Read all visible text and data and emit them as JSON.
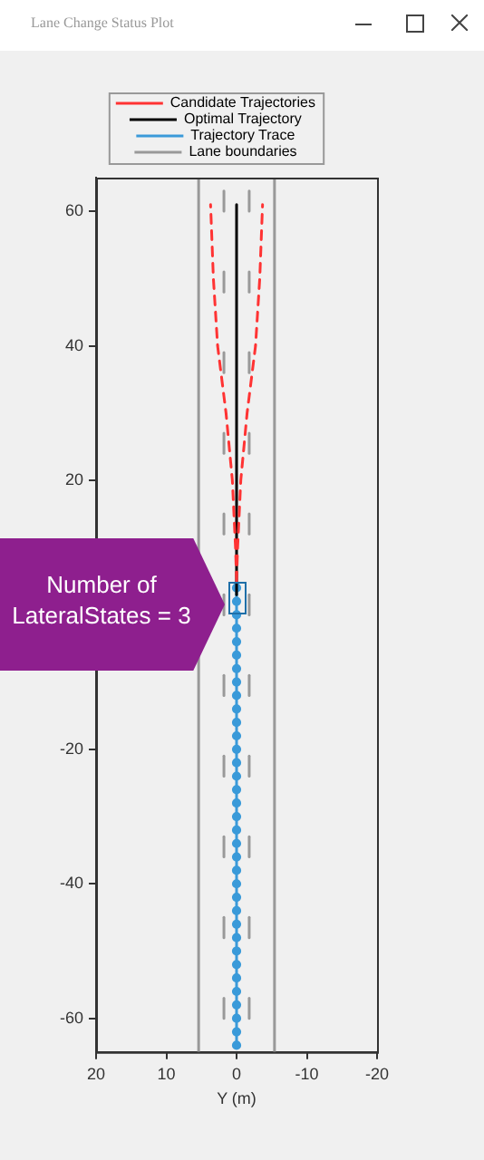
{
  "chart_data": {
    "type": "line",
    "title": "Lane Change Status Plot",
    "xlabel": "Y (m)",
    "annotations": [
      "Number of LateralStates = 3"
    ],
    "xlim": [
      20,
      -20
    ],
    "xticks": [
      20,
      10,
      0,
      -10,
      -20
    ],
    "ylim": [
      -65,
      65
    ],
    "yticks": [
      -60,
      -40,
      -20,
      {
        "value": 0,
        "label": null
      },
      20,
      40,
      60
    ],
    "grid": false,
    "legend": "top",
    "series": [
      {
        "name": "Candidate Trajectories",
        "color": "#ff3333",
        "line_style": "dashed",
        "marker": "none",
        "x": [
          0,
          0.15,
          0.6,
          1.5,
          2.7,
          3.3,
          3.7,
          null,
          0,
          -0.15,
          -0.6,
          -1.5,
          -2.7,
          -3.3,
          -3.7
        ],
        "values": [
          5,
          10,
          20,
          30,
          40,
          50,
          61,
          null,
          5,
          10,
          20,
          30,
          40,
          50,
          61
        ]
      },
      {
        "name": "Optimal Trajectory",
        "color": "#000000",
        "line_style": "solid",
        "marker": "none",
        "x": [
          0,
          0
        ],
        "values": [
          3,
          61
        ]
      },
      {
        "name": "Trajectory Trace",
        "color": "#3a9ad9",
        "line_style": "solid",
        "marker": "circle",
        "x": [
          0,
          0,
          0,
          0,
          0,
          0,
          0,
          0,
          0,
          0,
          0,
          0,
          0,
          0,
          0,
          0,
          0,
          0,
          0,
          0,
          0,
          0,
          0,
          0,
          0,
          0,
          0,
          0,
          0,
          0,
          0,
          0,
          0,
          0,
          0
        ],
        "values": [
          -64,
          -62,
          -60,
          -58,
          -56,
          -54,
          -52,
          -50,
          -48,
          -46,
          -44,
          -42,
          -40,
          -38,
          -36,
          -34,
          -32,
          -30,
          -28,
          -26,
          -24,
          -22,
          -20,
          -18,
          -16,
          -14,
          -12,
          -10,
          -8,
          -6,
          -4,
          -2,
          0,
          2,
          4
        ]
      },
      {
        "name": "Lane boundaries",
        "color": "#999999",
        "x": [
          5.4,
          5.4
        ],
        "values": [
          -65,
          65
        ]
      },
      {
        "color": "#999999",
        "x": [
          -5.4,
          -5.4
        ],
        "values": [
          -65,
          65
        ]
      },
      {
        "color": "#999999",
        "x": [
          1.8,
          1.8
        ],
        "values": [
          60,
          63
        ]
      },
      {
        "color": "#999999",
        "x": [
          1.8,
          1.8
        ],
        "values": [
          48,
          51
        ]
      },
      {
        "color": "#999999",
        "x": [
          1.8,
          1.8
        ],
        "values": [
          36,
          39
        ]
      },
      {
        "color": "#999999",
        "x": [
          1.8,
          1.8
        ],
        "values": [
          24,
          27
        ]
      },
      {
        "color": "#999999",
        "x": [
          1.8,
          1.8
        ],
        "values": [
          12,
          15
        ]
      },
      {
        "color": "#999999",
        "x": [
          1.8,
          1.8
        ],
        "values": [
          0,
          3
        ]
      },
      {
        "color": "#999999",
        "x": [
          1.8,
          1.8
        ],
        "values": [
          -12,
          -9
        ]
      },
      {
        "color": "#999999",
        "x": [
          1.8,
          1.8
        ],
        "values": [
          -24,
          -21
        ]
      },
      {
        "color": "#999999",
        "x": [
          1.8,
          1.8
        ],
        "values": [
          -36,
          -33
        ]
      },
      {
        "color": "#999999",
        "x": [
          1.8,
          1.8
        ],
        "values": [
          -48,
          -45
        ]
      },
      {
        "color": "#999999",
        "x": [
          1.8,
          1.8
        ],
        "values": [
          -60,
          -57
        ]
      },
      {
        "color": "#999999",
        "x": [
          -1.8,
          -1.8
        ],
        "values": [
          60,
          63
        ]
      },
      {
        "color": "#999999",
        "x": [
          -1.8,
          -1.8
        ],
        "values": [
          48,
          51
        ]
      },
      {
        "color": "#999999",
        "x": [
          -1.8,
          -1.8
        ],
        "values": [
          36,
          39
        ]
      },
      {
        "color": "#999999",
        "x": [
          -1.8,
          -1.8
        ],
        "values": [
          24,
          27
        ]
      },
      {
        "color": "#999999",
        "x": [
          -1.8,
          -1.8
        ],
        "values": [
          12,
          15
        ]
      },
      {
        "color": "#999999",
        "x": [
          -1.8,
          -1.8
        ],
        "values": [
          0,
          3
        ]
      },
      {
        "color": "#999999",
        "x": [
          -1.8,
          -1.8
        ],
        "values": [
          -12,
          -9
        ]
      },
      {
        "color": "#999999",
        "x": [
          -1.8,
          -1.8
        ],
        "values": [
          -24,
          -21
        ]
      },
      {
        "color": "#999999",
        "x": [
          -1.8,
          -1.8
        ],
        "values": [
          -36,
          -33
        ]
      },
      {
        "color": "#999999",
        "x": [
          -1.8,
          -1.8
        ],
        "values": [
          -48,
          -45
        ]
      },
      {
        "color": "#999999",
        "x": [
          -1.8,
          -1.8
        ],
        "values": [
          -60,
          -57
        ]
      }
    ]
  }
}
